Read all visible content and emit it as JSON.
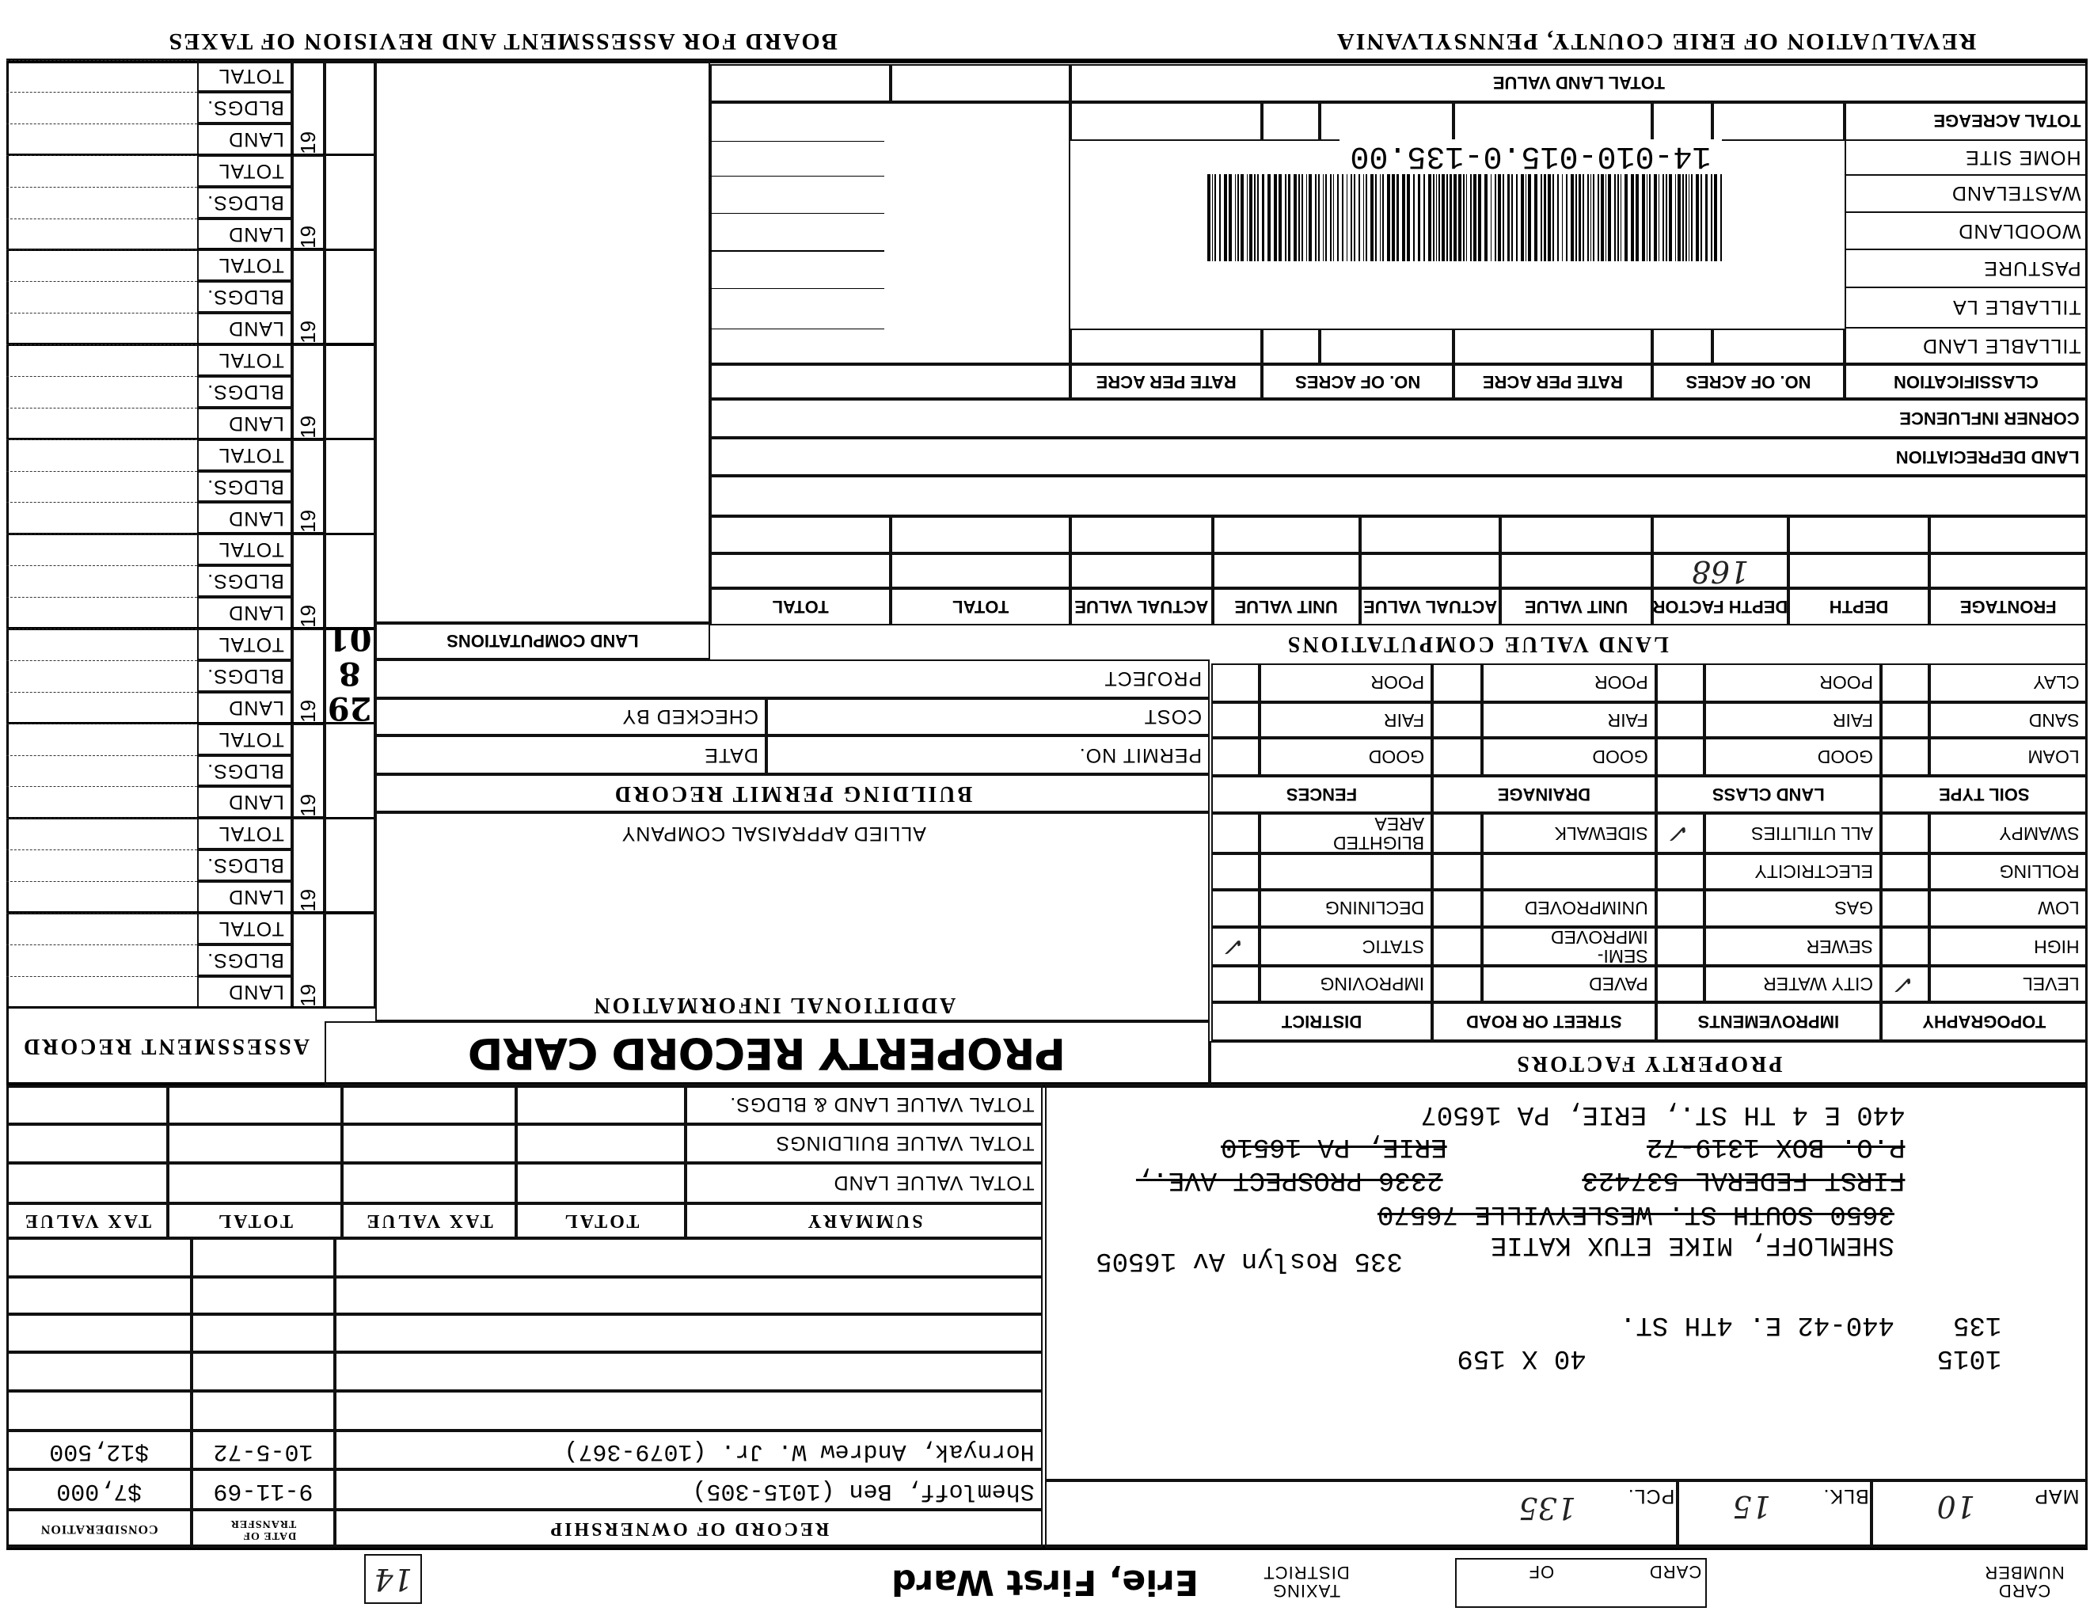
{
  "header": {
    "board": "BOARD FOR ASSESSMENT AND REVISION OF TAXES",
    "revaluation": "REVALUATION OF ERIE COUNTY, PENNSYLVANIA"
  },
  "assessment_record": {
    "title": "ASSESSMENT RECORD",
    "year_prefix": "19",
    "row_labels": [
      "TOTAL",
      "BLDGS.",
      "LAND"
    ],
    "stamp": "29\n8\n01"
  },
  "additional": {
    "land_computations": "LAND COMPUTATIONS",
    "project": "PROJECT",
    "cost": "COST",
    "checked_by": "CHECKED BY",
    "permit_no": "PERMIT NO.",
    "date": "DATE",
    "building_permit_record": "BUILDING PERMIT RECORD",
    "appraisal_company": "ALLIED APPRAISAL COMPANY",
    "additional_information": "ADDITIONAL INFORMATION",
    "card_title": "PROPERTY RECORD CARD"
  },
  "land": {
    "total_land_value": "TOTAL LAND VALUE",
    "acreage_rows": [
      "TOTAL ACREAGE",
      "HOME SITE",
      "WASTELAND",
      "WOODLAND",
      "PASTURE",
      "TILLABLE LA",
      "TILLABLE LAND"
    ],
    "classification_headers": [
      "CLASSIFICATION",
      "NO. OF ACRES",
      "RATE PER ACRE",
      "NO. OF ACRES",
      "RATE PER ACRE"
    ],
    "corner_influence": "CORNER INFLUENCE",
    "land_depreciation": "LAND DEPRECIATION",
    "computation_headers": [
      "FRONTAGE",
      "DEPTH",
      "DEPTH FACTOR",
      "UNIT VALUE",
      "ACTUAL VALUE",
      "UNIT VALUE",
      "ACTUAL VALUE",
      "TOTAL",
      "TOTAL"
    ],
    "caption": "LAND VALUE COMPUTATIONS",
    "depth_factor_value": "168"
  },
  "parcel_barcode": {
    "id": "14-010-015.0-135.00"
  },
  "property_factors": {
    "title": "PROPERTY FACTORS",
    "rows": [
      [
        "CLAY",
        "POOR",
        "POOR",
        "POOR"
      ],
      [
        "SAND",
        "FAIR",
        "FAIR",
        "FAIR"
      ],
      [
        "LOAM",
        "GOOD",
        "GOOD",
        "GOOD"
      ],
      [
        "SOIL TYPE",
        "LAND CLASS",
        "DRAINAGE",
        "FENCES"
      ],
      [
        "SWAMPY",
        "ALL UTILITIES",
        "SIDEWALK",
        "BLIGHTED\nAREA"
      ],
      [
        "ROLLING",
        "ELECTRICITY",
        "",
        ""
      ],
      [
        "LOW",
        "GAS",
        "UNIMPROVED",
        "DECLINING"
      ],
      [
        "HIGH",
        "SEWER",
        "SEMI-\nIMPROVED",
        "STATIC"
      ],
      [
        "LEVEL",
        "CITY WATER",
        "PAVED",
        "IMPROVING"
      ],
      [
        "TOPOGRAPHY",
        "IMPROVEMENTS",
        "STREET OR ROAD",
        "DISTRICT"
      ]
    ],
    "check_mark": "✓",
    "checked": [
      "LEVEL",
      "ALL UTILITIES",
      "STATIC"
    ]
  },
  "summary": {
    "row_labels": [
      "TOTAL VALUE LAND & BLDGS.",
      "TOTAL VALUE BUILDINGS",
      "TOTAL VALUE LAND"
    ],
    "headers": [
      "SUMMARY",
      "TOTAL",
      "TAX VALUE",
      "TOTAL",
      "TAX VALUE"
    ]
  },
  "ownership": {
    "headers": [
      "RECORD OF OWNERSHIP",
      "DATE OF\nTRANSFER",
      "CONSIDERATION"
    ],
    "rows": [
      {
        "owner": "Shemloff, Ben (1015-305)",
        "date": "9-11-69",
        "consideration": "$7,000"
      },
      {
        "owner": "Hornyak, Andrew W. Jr. (1079-367)",
        "date": "10-5-72",
        "consideration": "$12,500"
      }
    ]
  },
  "owner_record": {
    "current_address": "440 E 4 TH ST., ERIE, PA 16507",
    "po_box": "P.O. BOX 1319-72",
    "po_city": "ERIE, PA 16510",
    "bank": "FIRST FEDERAL 537423",
    "bank_address": "2336 PROSPECT AVE.,",
    "prior_address": "3650 SOUTH ST. WESLEYVILLE 76570",
    "owner_name": "SHEMLOFF, MIKE ETUX KATIE",
    "owner_address": "335 Roslyn Av  16505",
    "parcel_no": "135",
    "property_address": "440-42 E. 4TH ST.",
    "deed_ref": "1015",
    "lot_size": "40 X 159"
  },
  "parcel": {
    "map_label": "MAP",
    "map": "10",
    "blk_label": "BLK.",
    "blk": "15",
    "pcl_label": "PCL.",
    "pcl": "135"
  },
  "footer": {
    "card_number": "CARD\nNUMBER",
    "card_label": "CARD",
    "of_label": "OF",
    "taxing_district": "TAXING\nDISTRICT",
    "ward": "Erie, First Ward",
    "box_number": "14"
  }
}
